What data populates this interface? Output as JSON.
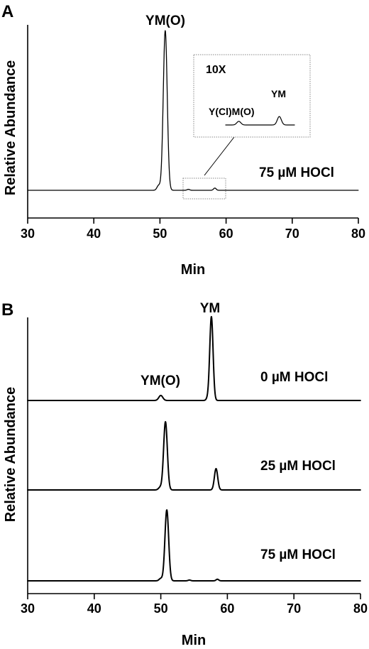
{
  "chart_data": [
    {
      "panel": "A",
      "type": "line",
      "xlabel": "Min",
      "ylabel": "Relative Abundance",
      "xlim": [
        30,
        80
      ],
      "x_ticks": [
        "30",
        "40",
        "50",
        "60",
        "70",
        "80"
      ],
      "traces": [
        {
          "label": "75 µM HOCl",
          "baseline_y": 0.0,
          "peaks": [
            {
              "x": 49.8,
              "height": 0.03,
              "width": 0.25
            },
            {
              "x": 50.8,
              "height": 1.0,
              "width": 0.3
            },
            {
              "x": 54.3,
              "height": 0.006,
              "width": 0.2
            },
            {
              "x": 58.3,
              "height": 0.014,
              "width": 0.2
            }
          ],
          "peak_labels": [
            {
              "text": "YM(O)",
              "x": 50.8
            }
          ]
        }
      ],
      "inset": {
        "magnification": "10X",
        "x_range": [
          53,
          59.8
        ],
        "peaks": [
          {
            "x": 54.3,
            "height": 0.06,
            "width": 0.2
          },
          {
            "x": 58.3,
            "height": 0.14,
            "width": 0.2
          }
        ],
        "peak_labels": [
          {
            "text": "Y(Cl)M(O)",
            "x": 54.3
          },
          {
            "text": "YM",
            "x": 58.3
          }
        ]
      }
    },
    {
      "panel": "B",
      "type": "line",
      "xlabel": "Min",
      "ylabel": "Relative Abundance",
      "xlim": [
        30,
        80
      ],
      "x_ticks": [
        "30",
        "40",
        "50",
        "60",
        "70",
        "80"
      ],
      "traces": [
        {
          "label": "0 µM HOCl",
          "peaks": [
            {
              "x": 50.0,
              "height": 0.06,
              "width": 0.3
            },
            {
              "x": 57.0,
              "height": 0.02,
              "width": 0.2
            },
            {
              "x": 57.6,
              "height": 1.0,
              "width": 0.25
            }
          ],
          "peak_labels": [
            {
              "text": "YM(O)",
              "x": 50.0
            },
            {
              "text": "YM",
              "x": 57.6
            }
          ]
        },
        {
          "label": "25 µM HOCl",
          "peaks": [
            {
              "x": 49.9,
              "height": 0.03,
              "width": 0.25
            },
            {
              "x": 50.7,
              "height": 0.8,
              "width": 0.28
            },
            {
              "x": 58.3,
              "height": 0.25,
              "width": 0.25
            }
          ],
          "peak_labels": []
        },
        {
          "label": "75 µM HOCl",
          "peaks": [
            {
              "x": 50.0,
              "height": 0.03,
              "width": 0.25
            },
            {
              "x": 50.9,
              "height": 0.9,
              "width": 0.28
            },
            {
              "x": 54.3,
              "height": 0.01,
              "width": 0.2
            },
            {
              "x": 58.5,
              "height": 0.02,
              "width": 0.2
            }
          ],
          "peak_labels": []
        }
      ]
    }
  ]
}
